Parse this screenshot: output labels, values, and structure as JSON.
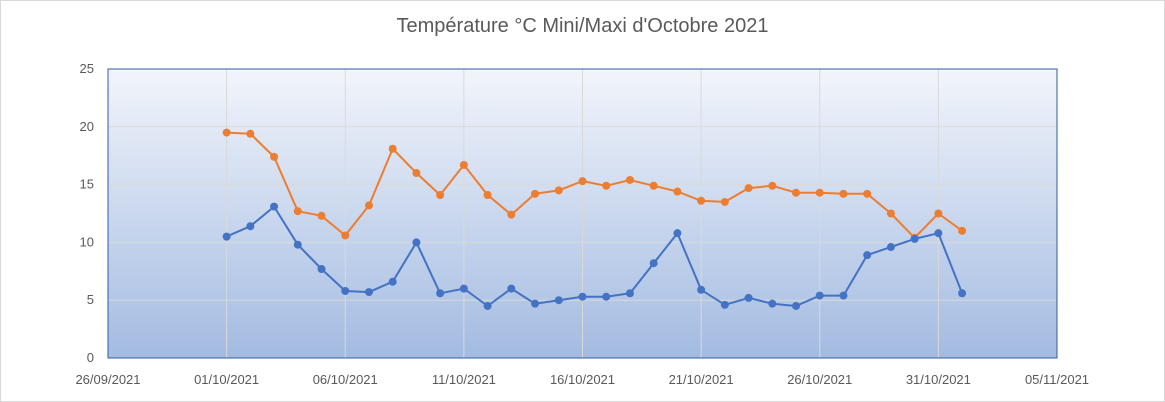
{
  "chart_data": {
    "type": "line",
    "title": "Température °C Mini/Maxi d'Octobre 2021",
    "xlabel": "",
    "ylabel": "",
    "ylim": [
      0,
      25
    ],
    "yticks": [
      0,
      5,
      10,
      15,
      20,
      25
    ],
    "xlim": [
      "26/09/2021",
      "05/11/2021"
    ],
    "xticks": [
      "26/09/2021",
      "01/10/2021",
      "06/10/2021",
      "11/10/2021",
      "16/10/2021",
      "21/10/2021",
      "26/10/2021",
      "31/10/2021",
      "05/11/2021"
    ],
    "grid": true,
    "legend": "none",
    "x": [
      "01/10/2021",
      "02/10/2021",
      "03/10/2021",
      "04/10/2021",
      "05/10/2021",
      "06/10/2021",
      "07/10/2021",
      "08/10/2021",
      "09/10/2021",
      "10/10/2021",
      "11/10/2021",
      "12/10/2021",
      "13/10/2021",
      "14/10/2021",
      "15/10/2021",
      "16/10/2021",
      "17/10/2021",
      "18/10/2021",
      "19/10/2021",
      "20/10/2021",
      "21/10/2021",
      "22/10/2021",
      "23/10/2021",
      "24/10/2021",
      "25/10/2021",
      "26/10/2021",
      "27/10/2021",
      "28/10/2021",
      "29/10/2021",
      "30/10/2021",
      "31/10/2021",
      "01/11/2021"
    ],
    "series": [
      {
        "color": "#ed7d31",
        "values": [
          19.5,
          19.4,
          17.4,
          12.7,
          12.3,
          10.6,
          13.2,
          18.1,
          16.0,
          14.1,
          16.7,
          14.1,
          12.4,
          14.2,
          14.5,
          15.3,
          14.9,
          15.4,
          14.9,
          14.4,
          13.6,
          13.5,
          14.7,
          14.9,
          14.3,
          14.3,
          14.2,
          14.2,
          12.5,
          10.4,
          12.5,
          11.0
        ]
      },
      {
        "color": "#4472c4",
        "values": [
          10.5,
          11.4,
          13.1,
          9.8,
          7.7,
          5.8,
          5.7,
          6.6,
          10.0,
          5.6,
          6.0,
          4.5,
          6.0,
          4.7,
          5.0,
          5.3,
          5.3,
          5.6,
          8.2,
          10.8,
          5.9,
          4.6,
          5.2,
          4.7,
          4.5,
          5.4,
          5.4,
          8.9,
          9.6,
          10.3,
          10.8,
          5.6
        ]
      }
    ]
  },
  "colors": {
    "plot_gradient_top": "#f2f5fb",
    "plot_gradient_bottom": "#a3bbe1",
    "plot_border": "#2e5d9f",
    "gridline": "#d9d9d9",
    "axis_text": "#595959"
  }
}
